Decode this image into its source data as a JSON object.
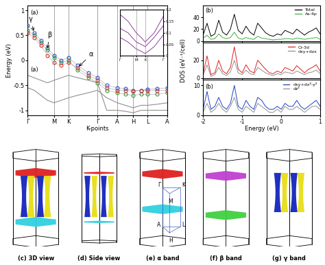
{
  "chart_data": [
    {
      "type": "line",
      "panel_labels": [
        "(a)",
        "(a)"
      ],
      "x_label": "K-points",
      "y_label": "Energy (eV)",
      "xlim": [
        0,
        5.3
      ],
      "ylim": [
        -1.1,
        1.1
      ],
      "xticks": [
        {
          "value": 0,
          "label": "Γ"
        },
        {
          "value": 1.0,
          "label": "M"
        },
        {
          "value": 1.55,
          "label": "K"
        },
        {
          "value": 2.65,
          "label": "Γ"
        },
        {
          "value": 3.4,
          "label": "A"
        },
        {
          "value": 4.0,
          "label": "H"
        },
        {
          "value": 4.55,
          "label": "L"
        },
        {
          "value": 5.3,
          "label": "A"
        }
      ],
      "yticks": [
        -1,
        -0.5,
        0,
        0.5,
        1
      ],
      "grid": "x",
      "x": [
        0,
        0.25,
        0.5,
        0.75,
        1.0,
        1.275,
        1.55,
        1.9,
        2.3,
        2.65,
        3.0,
        3.4,
        3.7,
        4.0,
        4.3,
        4.55,
        4.9,
        5.3
      ],
      "series": [
        {
          "color": "#909090",
          "line_style": "solid",
          "values": [
            -0.55,
            -0.6,
            -0.7,
            -0.8,
            -0.85,
            -0.8,
            -0.75,
            -0.7,
            -0.65,
            -0.6,
            -0.75,
            -0.85,
            -0.9,
            -0.95,
            -0.9,
            -0.9,
            -0.88,
            -0.85
          ]
        },
        {
          "color": "#909090",
          "line_style": "solid",
          "values": [
            -0.3,
            -0.35,
            -0.4,
            -0.45,
            -0.4,
            -0.35,
            -0.3,
            -0.35,
            -0.4,
            -0.45,
            -1.0,
            -1.0,
            -1.02,
            -1.05,
            -1.0,
            -1.0,
            -1.0,
            -1.0
          ]
        },
        {
          "name": "γ",
          "color": "#3050d0",
          "marker": "o",
          "values": [
            0.7,
            0.55,
            0.4,
            0.25,
            0.1,
            0.0,
            0.05,
            -0.1,
            -0.25,
            -0.35,
            -0.5,
            -0.55,
            -0.57,
            -0.6,
            -0.6,
            -0.58,
            -0.57,
            -0.55
          ]
        },
        {
          "name": "β",
          "color": "#30a030",
          "marker": "o",
          "values": [
            0.6,
            0.5,
            0.35,
            0.2,
            0.05,
            -0.05,
            0.0,
            -0.2,
            -0.35,
            -0.45,
            -0.6,
            -0.65,
            -0.68,
            -0.7,
            -0.68,
            -0.68,
            -0.68,
            -0.65
          ]
        },
        {
          "name": "α",
          "color": "#e03030",
          "marker": "o",
          "values": [
            0.55,
            0.45,
            0.3,
            0.1,
            -0.05,
            -0.1,
            -0.05,
            -0.15,
            -0.3,
            -0.4,
            -0.55,
            -0.6,
            -0.6,
            -0.62,
            -0.6,
            -0.6,
            -0.6,
            -0.6
          ]
        }
      ],
      "inset": {
        "xlim": [
          0,
          2.65
        ],
        "ylim": [
          0,
          0.2
        ],
        "xticks": [
          {
            "value": 0,
            "label": "Γ"
          },
          {
            "value": 1.0,
            "label": "M"
          },
          {
            "value": 1.55,
            "label": "K"
          },
          {
            "value": 2.65,
            "label": "Γ"
          }
        ],
        "yticks": [
          0,
          0.05,
          0.1,
          0.15,
          0.2
        ],
        "x": [
          0,
          0.5,
          1.0,
          1.3,
          1.55,
          2.1,
          2.65
        ],
        "series": [
          {
            "color": "#9040a0",
            "values": [
              0.18,
              0.15,
              0.1,
              0.08,
              0.06,
              0.1,
              0.17
            ]
          },
          {
            "color": "#9040a0",
            "values": [
              0.12,
              0.1,
              0.06,
              0.05,
              0.04,
              0.08,
              0.13
            ]
          },
          {
            "color": "#9040a0",
            "values": [
              0.08,
              0.06,
              0.03,
              0.02,
              0.01,
              0.04,
              0.09
            ]
          }
        ]
      }
    },
    {
      "type": "line",
      "panel_labels": [
        "(b)",
        "(b)"
      ],
      "x_label": "Energy (eV)",
      "y_label": "DOS (eV⁻¹/cell)",
      "xlim": [
        -2,
        1
      ],
      "xticks": [
        -2,
        -1,
        0,
        1
      ],
      "x": [
        -2.0,
        -1.9,
        -1.8,
        -1.7,
        -1.6,
        -1.5,
        -1.4,
        -1.3,
        -1.2,
        -1.1,
        -1.0,
        -0.9,
        -0.8,
        -0.7,
        -0.6,
        -0.5,
        -0.4,
        -0.3,
        -0.2,
        -0.1,
        0.0,
        0.1,
        0.2,
        0.3,
        0.4,
        0.5,
        0.6,
        0.7,
        0.8,
        0.9,
        1.0
      ],
      "panels": [
        {
          "ylim": [
            0,
            60
          ],
          "yticks": [
            0,
            20,
            40
          ],
          "legend": "upper right",
          "series": [
            {
              "name": "Total",
              "color": "#000000",
              "values": [
                10,
                30,
                8,
                12,
                35,
                15,
                10,
                20,
                45,
                18,
                12,
                25,
                15,
                10,
                30,
                22,
                14,
                10,
                8,
                12,
                10,
                18,
                15,
                12,
                20,
                15,
                10,
                15,
                18,
                22,
                12
              ]
            },
            {
              "name": "As-4p",
              "color": "#40b040",
              "values": [
                5,
                10,
                3,
                4,
                12,
                6,
                4,
                6,
                15,
                5,
                3,
                6,
                4,
                3,
                8,
                5,
                4,
                3,
                2,
                3,
                3,
                4,
                4,
                3,
                5,
                4,
                3,
                4,
                5,
                6,
                3
              ]
            }
          ]
        },
        {
          "ylim": [
            0,
            40
          ],
          "yticks": [
            0,
            20
          ],
          "legend": "upper right",
          "series": [
            {
              "name": "Cr-3d",
              "color": "#e02020",
              "values": [
                5,
                25,
                4,
                6,
                20,
                8,
                5,
                12,
                35,
                10,
                6,
                15,
                8,
                6,
                20,
                15,
                10,
                6,
                5,
                8,
                6,
                12,
                10,
                8,
                14,
                10,
                6,
                10,
                12,
                15,
                8
              ]
            },
            {
              "name": "dxy+dzx",
              "color": "#909090",
              "values": [
                3,
                15,
                2,
                4,
                12,
                5,
                3,
                7,
                20,
                6,
                4,
                9,
                5,
                4,
                12,
                9,
                6,
                4,
                3,
                5,
                4,
                7,
                6,
                5,
                8,
                6,
                4,
                6,
                7,
                9,
                5
              ]
            }
          ]
        },
        {
          "ylim": [
            0,
            12
          ],
          "yticks": [
            0,
            10
          ],
          "legend": "upper right",
          "series": [
            {
              "name": "dxy+dx²-y²",
              "color": "#2040c0",
              "values": [
                2,
                8,
                2,
                3,
                6,
                3,
                2,
                4,
                10,
                3,
                2,
                5,
                3,
                2,
                6,
                5,
                3,
                2,
                2,
                3,
                2,
                4,
                3,
                3,
                5,
                3,
                2,
                3,
                4,
                5,
                3
              ]
            },
            {
              "name": "dz²",
              "color": "#909090",
              "values": [
                1,
                4,
                1,
                2,
                4,
                2,
                1,
                3,
                6,
                2,
                1,
                3,
                2,
                1,
                4,
                3,
                2,
                1,
                1,
                2,
                1,
                3,
                2,
                2,
                3,
                2,
                1,
                2,
                3,
                3,
                2
              ]
            }
          ]
        }
      ]
    }
  ],
  "fermi_surfaces": {
    "captions": [
      "(c) 3D view",
      "(d) Side view",
      "(e) α band",
      "(f) β band",
      "(g) γ band"
    ],
    "bz_labels": [
      "Γ",
      "K",
      "M",
      "A",
      "H",
      "L"
    ]
  }
}
